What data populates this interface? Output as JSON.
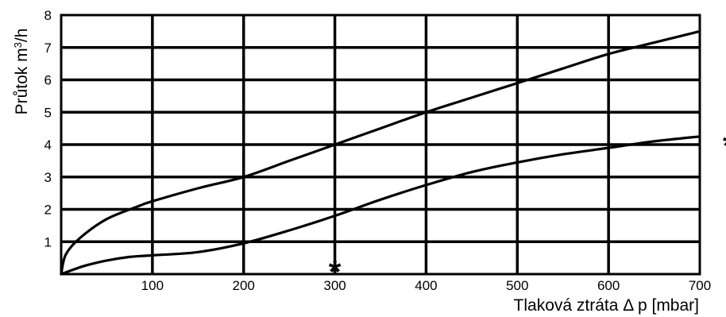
{
  "chart_data": {
    "type": "line",
    "xlabel": "Tlaková ztráta Δ p [mbar]",
    "ylabel_main": "Průtok m",
    "ylabel_sup": "3",
    "ylabel_end": "/h",
    "xlim": [
      0,
      700
    ],
    "ylim": [
      0,
      8
    ],
    "x_ticks": [
      "100",
      "200",
      "300",
      "400",
      "500",
      "600",
      "700"
    ],
    "y_ticks": [
      "1",
      "2",
      "3",
      "4",
      "5",
      "6",
      "7",
      "8"
    ],
    "grid": true,
    "legend": "none",
    "series": [
      {
        "x": [
          0,
          5,
          20,
          50,
          85,
          100,
          150,
          200,
          250,
          300,
          350,
          400,
          450,
          500,
          550,
          600,
          650,
          700
        ],
        "y": [
          0,
          0.6,
          1.1,
          1.7,
          2.1,
          2.25,
          2.65,
          3.0,
          3.5,
          4.0,
          4.5,
          5.0,
          5.45,
          5.9,
          6.35,
          6.8,
          7.15,
          7.5
        ]
      },
      {
        "x": [
          0,
          25,
          50,
          75,
          100,
          150,
          200,
          250,
          300,
          350,
          400,
          450,
          500,
          550,
          600,
          650,
          700
        ],
        "y": [
          0,
          0.25,
          0.42,
          0.53,
          0.58,
          0.68,
          0.95,
          1.35,
          1.8,
          2.3,
          2.75,
          3.15,
          3.45,
          3.7,
          3.9,
          4.1,
          4.25
        ]
      }
    ],
    "annotations": [
      {
        "text": "*",
        "x": 300,
        "y": 0.35
      },
      {
        "text": "*",
        "x": 732,
        "y": 4.25
      }
    ]
  }
}
